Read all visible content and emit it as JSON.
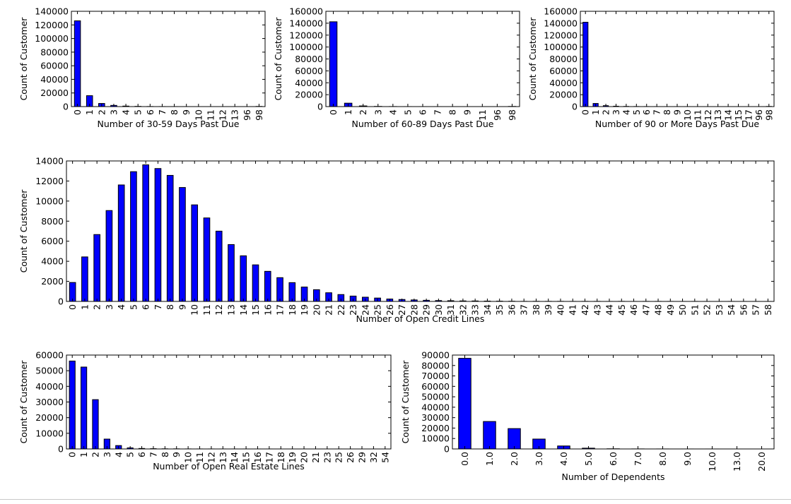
{
  "colors": {
    "bar": "#0000ff",
    "edge": "#000000",
    "background": "#ffffff"
  },
  "chart_data": [
    {
      "type": "bar",
      "xlabel": "Number of 30-59 Days Past Due",
      "ylabel": "Count of Customer",
      "ylim": [
        0,
        140000
      ],
      "yticks": [
        0,
        20000,
        40000,
        60000,
        80000,
        100000,
        120000,
        140000
      ],
      "categories": [
        "0",
        "1",
        "2",
        "3",
        "4",
        "5",
        "6",
        "7",
        "8",
        "9",
        "10",
        "11",
        "12",
        "13",
        "96",
        "98"
      ],
      "values": [
        126018,
        16033,
        4598,
        1754,
        747,
        342,
        140,
        54,
        25,
        12,
        4,
        1,
        2,
        1,
        5,
        264
      ],
      "grid": false
    },
    {
      "type": "bar",
      "xlabel": "Number of 60-89 Days Past Due",
      "ylabel": "Count of Customer",
      "ylim": [
        0,
        160000
      ],
      "yticks": [
        0,
        20000,
        40000,
        60000,
        80000,
        100000,
        120000,
        140000,
        160000
      ],
      "categories": [
        "0",
        "1",
        "2",
        "3",
        "4",
        "5",
        "6",
        "7",
        "8",
        "9",
        "11",
        "96",
        "98"
      ],
      "values": [
        142396,
        5731,
        1118,
        318,
        105,
        34,
        16,
        9,
        2,
        1,
        1,
        5,
        264
      ],
      "grid": false
    },
    {
      "type": "bar",
      "xlabel": "Number of 90 or More Days Past Due",
      "ylabel": "Count of Customer",
      "ylim": [
        0,
        160000
      ],
      "yticks": [
        0,
        20000,
        40000,
        60000,
        80000,
        100000,
        120000,
        140000,
        160000
      ],
      "categories": [
        "0",
        "1",
        "2",
        "3",
        "4",
        "5",
        "6",
        "7",
        "8",
        "9",
        "10",
        "11",
        "12",
        "13",
        "14",
        "15",
        "17",
        "96",
        "98"
      ],
      "values": [
        141662,
        5243,
        1555,
        667,
        291,
        131,
        80,
        38,
        21,
        19,
        8,
        5,
        2,
        4,
        2,
        2,
        1,
        5,
        264
      ],
      "grid": false
    },
    {
      "type": "bar",
      "xlabel": "Number of Open Credit Lines",
      "ylabel": "Count of Customer",
      "ylim": [
        0,
        14000
      ],
      "yticks": [
        0,
        2000,
        4000,
        6000,
        8000,
        10000,
        12000,
        14000
      ],
      "categories": [
        "0",
        "1",
        "2",
        "3",
        "4",
        "5",
        "6",
        "7",
        "8",
        "9",
        "10",
        "11",
        "12",
        "13",
        "14",
        "15",
        "16",
        "17",
        "18",
        "19",
        "20",
        "21",
        "22",
        "23",
        "24",
        "25",
        "26",
        "27",
        "28",
        "29",
        "30",
        "31",
        "32",
        "33",
        "34",
        "35",
        "36",
        "37",
        "38",
        "39",
        "40",
        "41",
        "42",
        "43",
        "44",
        "45",
        "46",
        "47",
        "48",
        "49",
        "50",
        "51",
        "52",
        "53",
        "54",
        "56",
        "57",
        "58"
      ],
      "values": [
        1888,
        4438,
        6666,
        9058,
        11609,
        12931,
        13614,
        13245,
        12562,
        11355,
        9624,
        8321,
        7005,
        5667,
        4546,
        3645,
        3000,
        2370,
        1874,
        1433,
        1169,
        864,
        685,
        533,
        422,
        337,
        239,
        194,
        150,
        114,
        88,
        74,
        52,
        47,
        35,
        27,
        18,
        7,
        13,
        9,
        10,
        4,
        8,
        8,
        3,
        8,
        3,
        6,
        6,
        4,
        2,
        4,
        3,
        1,
        4,
        2,
        2,
        2
      ],
      "grid": false
    },
    {
      "type": "bar",
      "xlabel": "Number of Open Real Estate Lines",
      "ylabel": "Count of Customer",
      "ylim": [
        0,
        60000
      ],
      "yticks": [
        0,
        10000,
        20000,
        30000,
        40000,
        50000,
        60000
      ],
      "categories": [
        "0",
        "1",
        "2",
        "3",
        "4",
        "5",
        "6",
        "7",
        "8",
        "9",
        "10",
        "11",
        "12",
        "13",
        "14",
        "15",
        "16",
        "17",
        "18",
        "19",
        "20",
        "21",
        "23",
        "25",
        "26",
        "29",
        "32",
        "54"
      ],
      "values": [
        56188,
        52338,
        31522,
        6300,
        2170,
        689,
        320,
        171,
        93,
        78,
        37,
        23,
        18,
        15,
        7,
        7,
        4,
        4,
        2,
        2,
        2,
        1,
        2,
        3,
        1,
        1,
        1,
        1
      ],
      "grid": false
    },
    {
      "type": "bar",
      "xlabel": "Number of Dependents",
      "ylabel": "Count of Customer",
      "ylim": [
        0,
        90000
      ],
      "yticks": [
        0,
        10000,
        20000,
        30000,
        40000,
        50000,
        60000,
        70000,
        80000,
        90000
      ],
      "categories": [
        "0.0",
        "1.0",
        "2.0",
        "3.0",
        "4.0",
        "5.0",
        "6.0",
        "7.0",
        "8.0",
        "9.0",
        "10.0",
        "13.0",
        "20.0"
      ],
      "values": [
        86902,
        26316,
        19522,
        9483,
        2862,
        746,
        158,
        51,
        24,
        5,
        5,
        1,
        1
      ],
      "grid": false
    }
  ]
}
